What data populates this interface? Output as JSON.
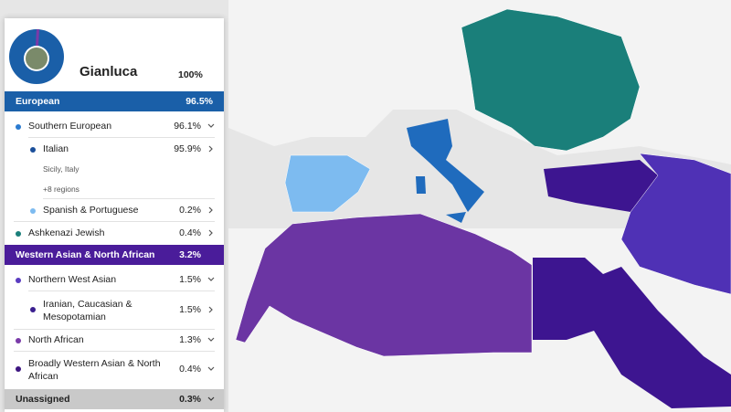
{
  "profile": {
    "name": "Gianluca",
    "percent": "100%"
  },
  "rows": [
    {
      "label": "European",
      "percent": "96.5%"
    },
    {
      "label": "Southern European",
      "percent": "96.1%"
    },
    {
      "label": "Italian",
      "percent": "95.9%",
      "detail": "Sicily, Italy",
      "more": "+8 regions"
    },
    {
      "label": "Spanish & Portuguese",
      "percent": "0.2%"
    },
    {
      "label": "Ashkenazi Jewish",
      "percent": "0.4%"
    },
    {
      "label": "Western Asian & North African",
      "percent": "3.2%"
    },
    {
      "label": "Northern West Asian",
      "percent": "1.5%"
    },
    {
      "label": "Iranian, Caucasian & Mesopotamian",
      "percent": "1.5%"
    },
    {
      "label": "North African",
      "percent": "1.3%"
    },
    {
      "label": "Broadly Western Asian & North African",
      "percent": "0.4%"
    },
    {
      "label": "Unassigned",
      "percent": "0.3%"
    }
  ]
}
